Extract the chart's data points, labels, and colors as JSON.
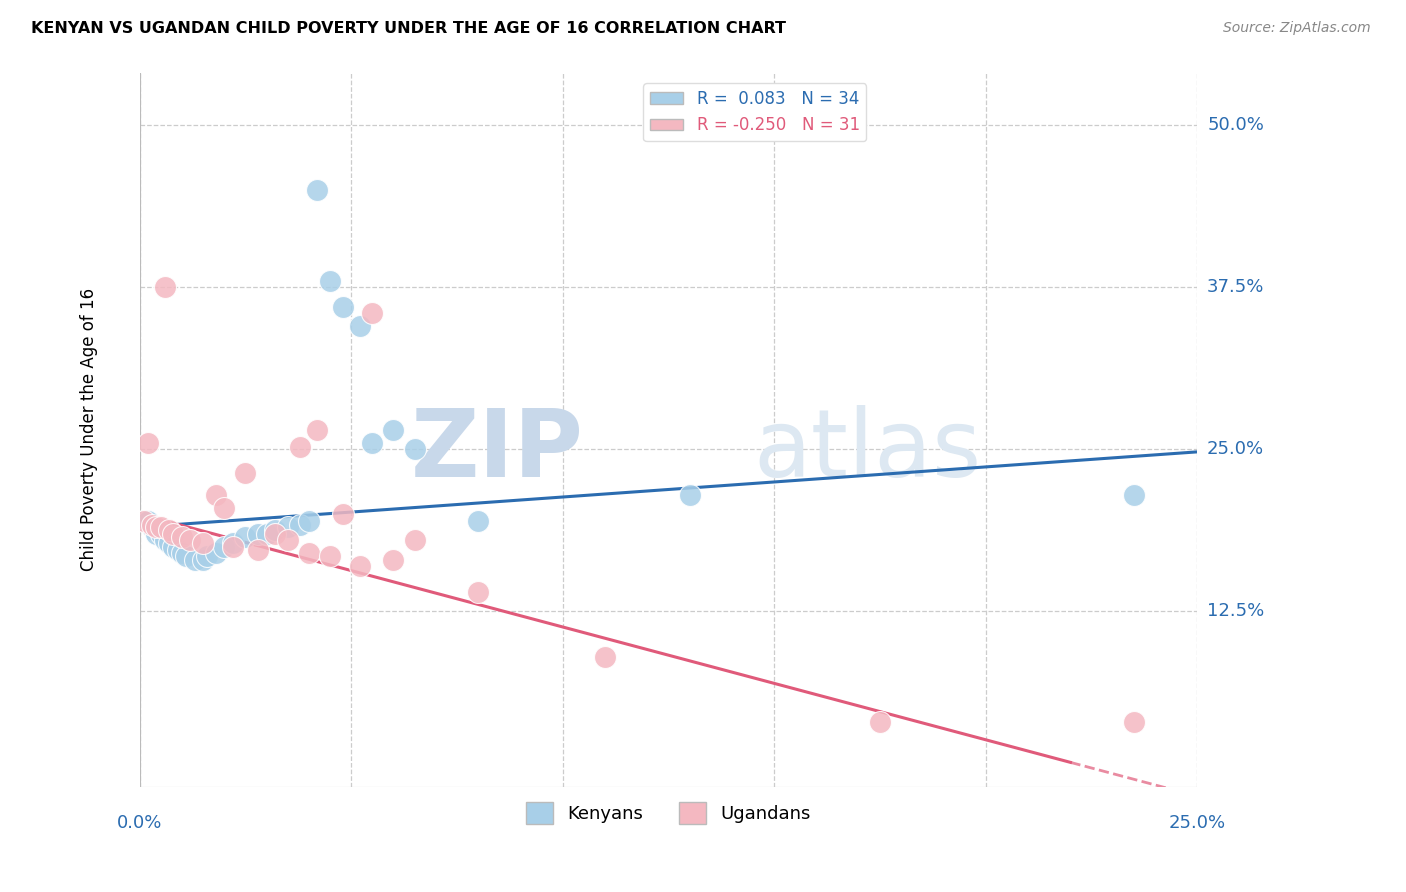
{
  "title": "KENYAN VS UGANDAN CHILD POVERTY UNDER THE AGE OF 16 CORRELATION CHART",
  "source": "Source: ZipAtlas.com",
  "ylabel": "Child Poverty Under the Age of 16",
  "watermark_zip": "ZIP",
  "watermark_atlas": "atlas",
  "legend_blue": "R =  0.083   N = 34",
  "legend_pink": "R = -0.250   N = 31",
  "legend_kenyans": "Kenyans",
  "legend_ugandans": "Ugandans",
  "blue_scatter_color": "#a8cfe8",
  "pink_scatter_color": "#f4b8c1",
  "blue_line_color": "#2b6cb0",
  "pink_line_color": "#e05a7a",
  "xmin": 0.0,
  "xmax": 0.25,
  "ymin": -0.01,
  "ymax": 0.54,
  "ytick_values": [
    0.125,
    0.25,
    0.375,
    0.5
  ],
  "ytick_labels": [
    "12.5%",
    "25.0%",
    "37.5%",
    "50.0%"
  ],
  "xtick_values": [
    0.0,
    0.05,
    0.1,
    0.15,
    0.2,
    0.25
  ],
  "kenyans_x": [
    0.001,
    0.002,
    0.003,
    0.004,
    0.005,
    0.006,
    0.007,
    0.008,
    0.009,
    0.01,
    0.011,
    0.013,
    0.015,
    0.016,
    0.018,
    0.02,
    0.022,
    0.025,
    0.028,
    0.03,
    0.032,
    0.035,
    0.038,
    0.04,
    0.042,
    0.045,
    0.048,
    0.052,
    0.055,
    0.06,
    0.065,
    0.08,
    0.13,
    0.235
  ],
  "kenyans_y": [
    0.195,
    0.195,
    0.19,
    0.185,
    0.185,
    0.18,
    0.178,
    0.175,
    0.172,
    0.17,
    0.168,
    0.165,
    0.165,
    0.168,
    0.17,
    0.175,
    0.178,
    0.182,
    0.185,
    0.185,
    0.188,
    0.19,
    0.192,
    0.195,
    0.45,
    0.38,
    0.36,
    0.345,
    0.255,
    0.265,
    0.25,
    0.195,
    0.215,
    0.215
  ],
  "ugandans_x": [
    0.001,
    0.002,
    0.003,
    0.004,
    0.005,
    0.006,
    0.007,
    0.008,
    0.01,
    0.012,
    0.015,
    0.018,
    0.02,
    0.022,
    0.025,
    0.028,
    0.032,
    0.035,
    0.038,
    0.04,
    0.042,
    0.045,
    0.048,
    0.052,
    0.055,
    0.06,
    0.065,
    0.08,
    0.11,
    0.175,
    0.235
  ],
  "ugandans_y": [
    0.195,
    0.255,
    0.192,
    0.19,
    0.19,
    0.375,
    0.188,
    0.185,
    0.182,
    0.18,
    0.178,
    0.215,
    0.205,
    0.175,
    0.232,
    0.172,
    0.185,
    0.18,
    0.252,
    0.17,
    0.265,
    0.168,
    0.2,
    0.16,
    0.355,
    0.165,
    0.18,
    0.14,
    0.09,
    0.04,
    0.04
  ]
}
